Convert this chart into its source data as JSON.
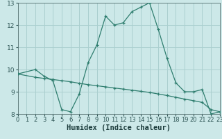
{
  "xlabel": "Humidex (Indice chaleur)",
  "ylabel": "",
  "bg_color": "#cce8e8",
  "line_color": "#2e7d6e",
  "grid_color": "#aacfcf",
  "curve1_x": [
    0,
    2,
    3,
    4,
    5,
    6,
    7,
    8,
    9,
    10,
    11,
    12,
    13,
    14,
    15,
    16,
    17,
    18,
    19,
    20,
    21,
    22,
    23
  ],
  "curve1_y": [
    9.8,
    10.0,
    9.7,
    9.5,
    8.2,
    8.1,
    8.9,
    10.3,
    11.1,
    12.4,
    12.0,
    12.1,
    12.6,
    12.8,
    13.0,
    11.8,
    10.5,
    9.4,
    9.0,
    9.0,
    9.1,
    8.0,
    8.1
  ],
  "curve2_x": [
    0,
    2,
    3,
    4,
    5,
    6,
    7,
    8,
    9,
    10,
    11,
    12,
    13,
    14,
    15,
    16,
    17,
    18,
    19,
    20,
    21,
    22,
    23
  ],
  "curve2_y": [
    9.8,
    9.65,
    9.6,
    9.55,
    9.5,
    9.45,
    9.38,
    9.32,
    9.27,
    9.22,
    9.17,
    9.12,
    9.07,
    9.02,
    8.97,
    8.9,
    8.83,
    8.75,
    8.67,
    8.6,
    8.52,
    8.2,
    8.1
  ],
  "xlim": [
    0,
    23
  ],
  "ylim": [
    8,
    13
  ],
  "xticks": [
    0,
    1,
    2,
    3,
    4,
    5,
    6,
    7,
    8,
    9,
    10,
    11,
    12,
    13,
    14,
    15,
    16,
    17,
    18,
    19,
    20,
    21,
    22,
    23
  ],
  "yticks": [
    8,
    9,
    10,
    11,
    12,
    13
  ],
  "tick_fontsize": 6.5,
  "xlabel_fontsize": 7.5
}
